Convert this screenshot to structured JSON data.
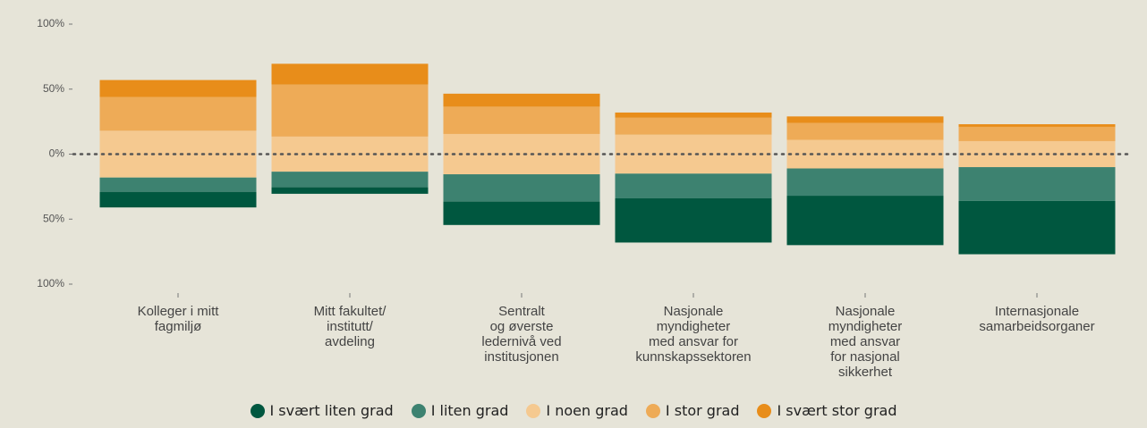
{
  "chart_data": {
    "type": "diverging_bar",
    "categories": [
      "Kolleger i mitt\nfagmiljø",
      "Mitt fakultet/\ninstitutt/\navdeling",
      "Sentralt\nog øverste\nledernivå ved\ninstitusjonen",
      "Nasjonale\nmyndigheter\nmed ansvar for\nkunnskapssektoren",
      "Nasjonale\nmyndigheter\nmed ansvar\nfor nasjonal\nsikkerhet",
      "Internasjonale\nsamarbeidsorganer"
    ],
    "series": [
      {
        "name": "I svært liten grad",
        "color": "#00573f",
        "values": [
          12,
          5,
          18,
          34,
          38,
          41
        ]
      },
      {
        "name": "I liten grad",
        "color": "#3d8270",
        "values": [
          11,
          12,
          21,
          19,
          21,
          26
        ]
      },
      {
        "name": "I noen grad",
        "color": "#f5c990",
        "values": [
          36,
          27,
          31,
          30,
          22,
          20
        ]
      },
      {
        "name": "I stor grad",
        "color": "#eeab57",
        "values": [
          26,
          40,
          21,
          13,
          13,
          11
        ]
      },
      {
        "name": "I svært stor grad",
        "color": "#e88d1a",
        "values": [
          13,
          16,
          10,
          4,
          5,
          2
        ]
      }
    ],
    "ylim": [
      -100,
      100
    ],
    "yticks": [
      {
        "value": 100,
        "label": "100%"
      },
      {
        "value": 50,
        "label": "50%"
      },
      {
        "value": 0,
        "label": "0%"
      },
      {
        "value": -50,
        "label": "50%"
      },
      {
        "value": -100,
        "label": "100%"
      }
    ]
  }
}
